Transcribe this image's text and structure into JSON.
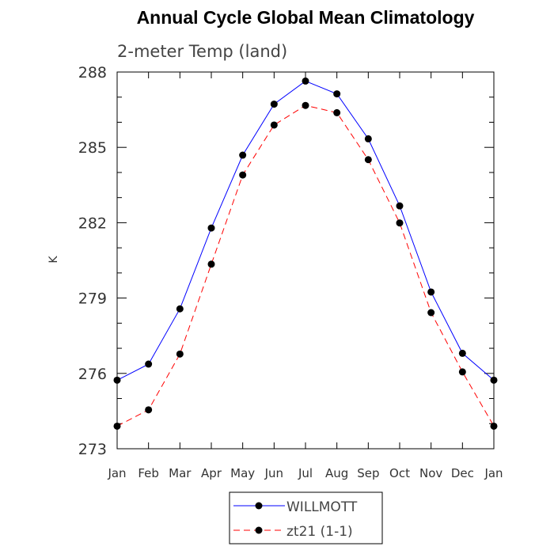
{
  "chart_data": {
    "type": "line",
    "title": "Annual Cycle Global Mean Climatology",
    "subtitle": "2-meter Temp (land)",
    "xlabel": "",
    "ylabel": "K",
    "categories": [
      "Jan",
      "Feb",
      "Mar",
      "Apr",
      "May",
      "Jun",
      "Jul",
      "Aug",
      "Sep",
      "Oct",
      "Nov",
      "Dec",
      "Jan"
    ],
    "ylim": [
      273,
      288
    ],
    "yticks": [
      273,
      276,
      279,
      282,
      285,
      288
    ],
    "grid": false,
    "legend_position": "bottom-center",
    "series": [
      {
        "name": "WILLMOTT",
        "color": "#0000ff",
        "dash": "solid",
        "marker": "filled-circle",
        "values": [
          275.73,
          276.37,
          278.57,
          281.79,
          284.69,
          286.72,
          287.64,
          287.13,
          285.34,
          282.67,
          279.24,
          276.8,
          275.73
        ]
      },
      {
        "name": "zt21 (1-1)",
        "color": "#ff0000",
        "dash": "dashed",
        "marker": "filled-circle",
        "values": [
          273.9,
          274.55,
          276.77,
          280.35,
          283.9,
          285.89,
          286.67,
          286.38,
          284.51,
          281.99,
          278.42,
          276.06,
          273.9
        ]
      }
    ]
  }
}
